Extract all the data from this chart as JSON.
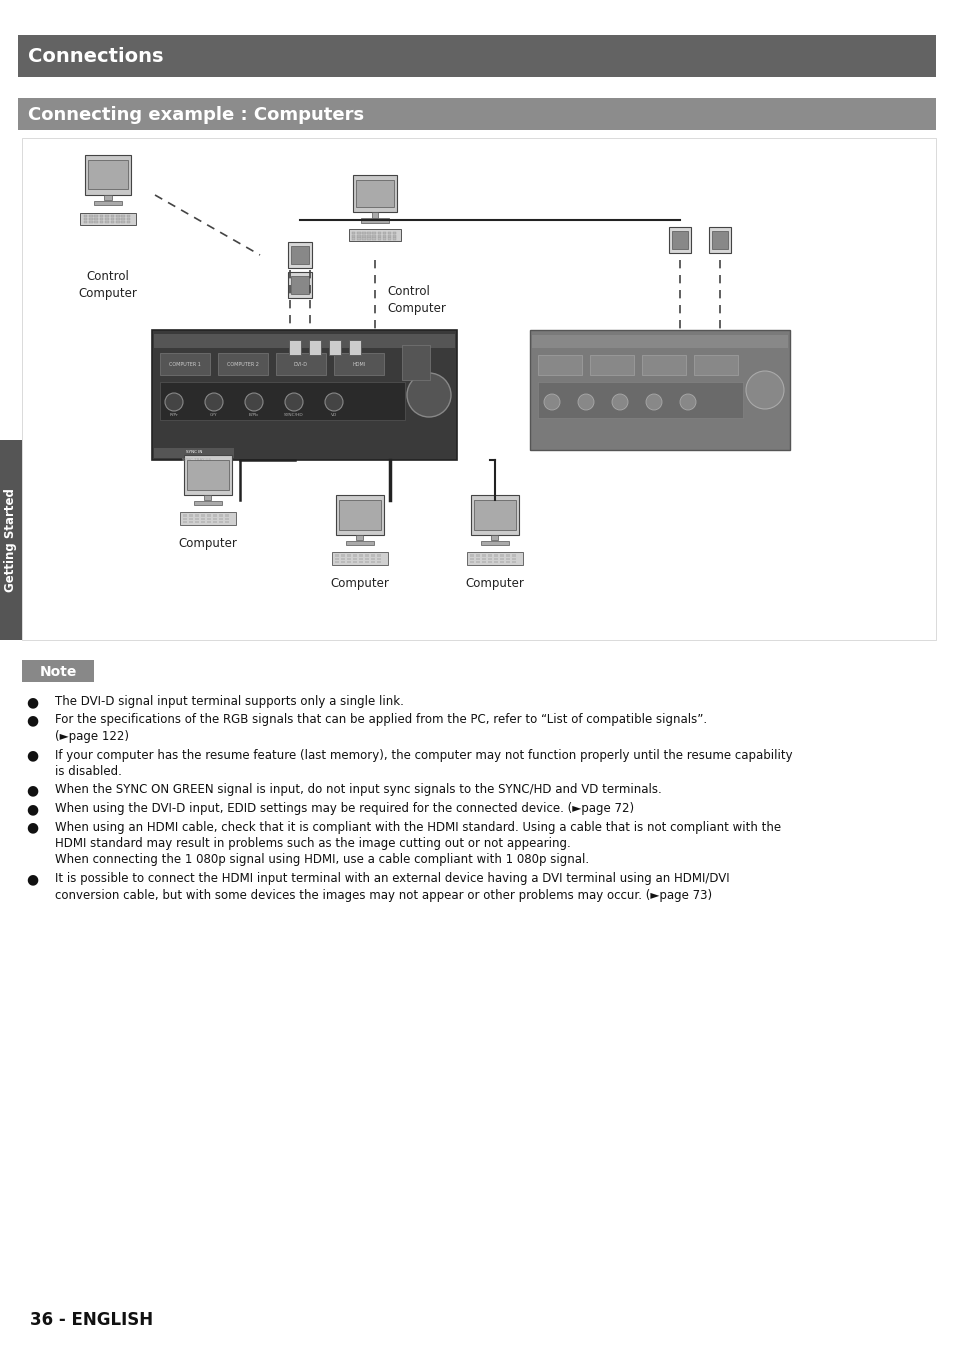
{
  "page_bg": "#ffffff",
  "header_bg": "#636363",
  "header_text": "Connections",
  "header_text_color": "#ffffff",
  "subheader_bg": "#8c8c8c",
  "subheader_text": "Connecting example : Computers",
  "subheader_text_color": "#ffffff",
  "sidebar_bg": "#555555",
  "sidebar_text": "Getting Started",
  "sidebar_text_color": "#ffffff",
  "note_box_bg": "#888888",
  "note_box_text": "Note",
  "note_box_text_color": "#ffffff",
  "footer_text": "36 - ENGLISH",
  "note_bullets": [
    "The DVI-D signal input terminal supports only a single link.",
    "For the specifications of the RGB signals that can be applied from the PC, refer to “List of compatible signals”.\n    (►page 122)",
    "If your computer has the resume feature (last memory), the computer may not function properly until the resume capability\n    is disabled.",
    "When the SYNC ON GREEN signal is input, do not input sync signals to the SYNC/HD and VD terminals.",
    "When using the DVI-D input, EDID settings may be required for the connected device. (►page 72)",
    "When using an HDMI cable, check that it is compliant with the HDMI standard. Using a cable that is not compliant with the\n    HDMI standard may result in problems such as the image cutting out or not appearing.\n    When connecting the 1 080p signal using HDMI, use a cable compliant with 1 080p signal.",
    "It is possible to connect the HDMI input terminal with an external device having a DVI terminal using an HDMI/DVI\n    conversion cable, but with some devices the images may not appear or other problems may occur. (►page 73)"
  ]
}
